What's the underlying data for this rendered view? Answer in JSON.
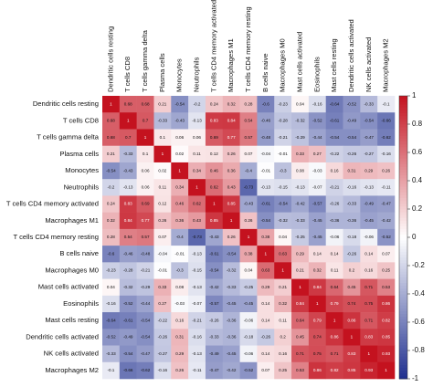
{
  "chart_data": {
    "type": "heatmap",
    "rows": [
      "Dendritic cells resting",
      "T cells CD8",
      "T cells gamma delta",
      "Plasma cells",
      "Monocytes",
      "Neutrophils",
      "T cells CD4 memory activated",
      "Macrophages M1",
      "T cells CD4 memory resting",
      "B cells naive",
      "Macrophages M0",
      "Mast cells activated",
      "Eosinophils",
      "Mast cells resting",
      "Dendritic cells activated",
      "NK cells activated",
      "Macrophages M2"
    ],
    "columns": [
      "Dendritic cells resting",
      "T cells CD8",
      "T cells gamma delta",
      "Plasma cells",
      "Monocytes",
      "Neutrophils",
      "T cells CD4 memory activated",
      "Macrophages M1",
      "T cells CD4 memory resting",
      "B cells naive",
      "Macrophages M0",
      "Mast cells activated",
      "Eosinophils",
      "Mast cells resting",
      "Dendritic cells activated",
      "NK cells activated",
      "Macrophages M2"
    ],
    "values": [
      [
        1,
        0.68,
        0.68,
        0.21,
        -0.54,
        -0.2,
        0.24,
        0.32,
        0.28,
        -0.6,
        -0.23,
        0.04,
        -0.16,
        -0.64,
        -0.52,
        -0.33,
        -0.1
      ],
      [
        0.68,
        1,
        0.7,
        -0.33,
        -0.43,
        -0.13,
        0.83,
        0.84,
        0.54,
        -0.46,
        -0.28,
        -0.32,
        -0.52,
        -0.61,
        -0.49,
        -0.54,
        -0.66
      ],
      [
        0.68,
        0.7,
        1,
        0.1,
        0.06,
        0.06,
        0.69,
        0.77,
        0.57,
        -0.48,
        -0.21,
        -0.29,
        -0.44,
        -0.54,
        -0.54,
        -0.47,
        -0.62
      ],
      [
        0.21,
        -0.33,
        0.1,
        1,
        0.02,
        0.11,
        0.12,
        0.26,
        0.07,
        -0.04,
        -0.01,
        0.33,
        0.27,
        -0.22,
        -0.26,
        -0.27,
        -0.16
      ],
      [
        -0.54,
        -0.43,
        0.06,
        0.02,
        1,
        0.34,
        0.46,
        0.36,
        -0.4,
        -0.01,
        -0.3,
        0.08,
        -0.03,
        0.16,
        0.31,
        0.29,
        0.26
      ],
      [
        -0.2,
        -0.13,
        0.06,
        0.11,
        0.34,
        1,
        0.62,
        0.43,
        -0.73,
        -0.13,
        -0.15,
        -0.13,
        -0.07,
        -0.21,
        -0.16,
        -0.13,
        -0.11
      ],
      [
        0.24,
        0.83,
        0.69,
        0.12,
        0.46,
        0.62,
        1,
        0.85,
        -0.43,
        -0.61,
        -0.54,
        -0.42,
        -0.57,
        -0.26,
        -0.33,
        -0.49,
        -0.47
      ],
      [
        0.32,
        0.84,
        0.77,
        0.26,
        0.36,
        0.43,
        0.85,
        1,
        0.26,
        -0.54,
        -0.32,
        -0.33,
        -0.45,
        -0.36,
        -0.36,
        -0.45,
        -0.42
      ],
      [
        0.28,
        0.54,
        0.57,
        0.07,
        -0.4,
        -0.73,
        -0.43,
        0.26,
        1,
        0.38,
        0.04,
        -0.25,
        -0.45,
        -0.06,
        -0.18,
        -0.06,
        -0.52
      ],
      [
        -0.6,
        -0.46,
        -0.48,
        -0.04,
        -0.01,
        -0.13,
        -0.61,
        -0.54,
        0.38,
        1,
        0.63,
        0.29,
        0.14,
        0.14,
        -0.26,
        0.14,
        0.07
      ],
      [
        -0.23,
        -0.28,
        -0.21,
        -0.01,
        -0.3,
        -0.15,
        -0.54,
        -0.32,
        0.04,
        0.63,
        1,
        0.21,
        0.32,
        0.11,
        0.2,
        0.16,
        0.25
      ],
      [
        0.04,
        -0.32,
        -0.29,
        0.33,
        0.08,
        -0.13,
        -0.42,
        -0.33,
        -0.25,
        0.29,
        0.21,
        1,
        0.84,
        0.64,
        0.45,
        0.71,
        0.53
      ],
      [
        -0.16,
        -0.52,
        -0.44,
        0.27,
        -0.03,
        -0.07,
        -0.57,
        -0.45,
        -0.45,
        0.14,
        0.32,
        0.84,
        1,
        0.79,
        0.74,
        0.75,
        0.86
      ],
      [
        -0.64,
        -0.61,
        -0.54,
        -0.22,
        0.16,
        -0.21,
        -0.26,
        -0.36,
        -0.06,
        0.14,
        0.11,
        0.64,
        0.79,
        1,
        0.86,
        0.71,
        0.82
      ],
      [
        -0.52,
        -0.49,
        -0.54,
        -0.26,
        0.31,
        -0.16,
        -0.33,
        -0.36,
        -0.18,
        -0.26,
        0.2,
        0.45,
        0.74,
        0.86,
        1,
        0.83,
        0.85
      ],
      [
        -0.33,
        -0.54,
        -0.47,
        -0.27,
        0.29,
        -0.13,
        -0.49,
        -0.45,
        -0.06,
        0.14,
        0.16,
        0.71,
        0.75,
        0.71,
        0.83,
        1,
        0.93
      ],
      [
        -0.1,
        -0.66,
        -0.62,
        -0.16,
        0.26,
        -0.11,
        -0.47,
        -0.42,
        -0.52,
        0.07,
        0.25,
        0.53,
        0.86,
        0.82,
        0.85,
        0.93,
        1
      ]
    ],
    "zlim": [
      -1,
      1
    ],
    "zticks": [
      1,
      0.8,
      0.6,
      0.4,
      0.2,
      0,
      -0.2,
      -0.4,
      -0.6,
      -0.8,
      -1
    ],
    "colorscale": [
      "#1f2f8f",
      "#ffffff",
      "#c4121f"
    ]
  }
}
